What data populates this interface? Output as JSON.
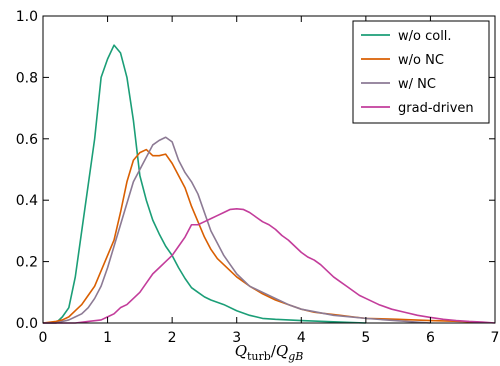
{
  "chart_data": {
    "type": "line",
    "xlabel": "Q_turb / Q_gB",
    "xlabel_parts": {
      "main1": "Q",
      "sub1": "turb",
      "slash": "/",
      "main2": "Q",
      "sub2": "gB"
    },
    "ylabel": "",
    "xlim": [
      0,
      7
    ],
    "ylim": [
      0,
      1.0
    ],
    "xticks": [
      0,
      1,
      2,
      3,
      4,
      5,
      6,
      7
    ],
    "yticks": [
      0.0,
      0.2,
      0.4,
      0.6,
      0.8,
      1.0
    ],
    "xtick_labels": [
      "0",
      "1",
      "2",
      "3",
      "4",
      "5",
      "6",
      "7"
    ],
    "ytick_labels": [
      "0.0",
      "0.2",
      "0.4",
      "0.6",
      "0.8",
      "1.0"
    ],
    "grid": false,
    "legend_position": "top-right",
    "series": [
      {
        "name": "w/o coll.",
        "color": "#1b9e77",
        "x": [
          0.0,
          0.2,
          0.3,
          0.4,
          0.5,
          0.6,
          0.7,
          0.8,
          0.9,
          1.0,
          1.1,
          1.2,
          1.3,
          1.4,
          1.5,
          1.6,
          1.7,
          1.8,
          1.9,
          2.0,
          2.1,
          2.2,
          2.3,
          2.4,
          2.5,
          2.6,
          2.8,
          3.0,
          3.2,
          3.4,
          3.6,
          4.0,
          4.5,
          5.0
        ],
        "y": [
          0.0,
          0.0,
          0.02,
          0.05,
          0.15,
          0.3,
          0.45,
          0.6,
          0.8,
          0.86,
          0.905,
          0.88,
          0.8,
          0.66,
          0.48,
          0.4,
          0.335,
          0.29,
          0.25,
          0.22,
          0.18,
          0.145,
          0.115,
          0.1,
          0.085,
          0.075,
          0.06,
          0.04,
          0.025,
          0.015,
          0.012,
          0.008,
          0.004,
          0.0
        ]
      },
      {
        "name": "w/o NC",
        "color": "#d95f02",
        "x": [
          0.0,
          0.2,
          0.3,
          0.4,
          0.5,
          0.6,
          0.7,
          0.8,
          0.9,
          1.0,
          1.1,
          1.2,
          1.3,
          1.4,
          1.5,
          1.6,
          1.7,
          1.8,
          1.9,
          2.0,
          2.1,
          2.2,
          2.3,
          2.4,
          2.5,
          2.6,
          2.7,
          2.8,
          2.9,
          3.0,
          3.2,
          3.4,
          3.6,
          3.8,
          4.0,
          4.2,
          4.4,
          4.6,
          4.8,
          5.0,
          5.5,
          6.0,
          6.5,
          6.8
        ],
        "y": [
          0.0,
          0.005,
          0.01,
          0.02,
          0.04,
          0.06,
          0.09,
          0.12,
          0.17,
          0.22,
          0.27,
          0.36,
          0.46,
          0.53,
          0.555,
          0.565,
          0.545,
          0.545,
          0.55,
          0.52,
          0.48,
          0.44,
          0.38,
          0.33,
          0.28,
          0.24,
          0.21,
          0.19,
          0.17,
          0.15,
          0.12,
          0.095,
          0.075,
          0.06,
          0.045,
          0.035,
          0.03,
          0.025,
          0.02,
          0.015,
          0.012,
          0.008,
          0.005,
          0.002
        ]
      },
      {
        "name": "w/ NC",
        "color": "#8c7a94",
        "x": [
          0.0,
          0.2,
          0.4,
          0.5,
          0.6,
          0.7,
          0.8,
          0.9,
          1.0,
          1.1,
          1.2,
          1.3,
          1.4,
          1.5,
          1.6,
          1.7,
          1.8,
          1.9,
          2.0,
          2.1,
          2.2,
          2.3,
          2.4,
          2.5,
          2.6,
          2.7,
          2.8,
          2.9,
          3.0,
          3.2,
          3.4,
          3.6,
          3.8,
          4.0,
          4.5,
          5.0,
          5.5,
          6.0
        ],
        "y": [
          0.0,
          0.0,
          0.01,
          0.02,
          0.03,
          0.05,
          0.08,
          0.12,
          0.18,
          0.25,
          0.32,
          0.39,
          0.46,
          0.5,
          0.54,
          0.58,
          0.595,
          0.605,
          0.59,
          0.53,
          0.49,
          0.46,
          0.42,
          0.36,
          0.3,
          0.26,
          0.22,
          0.19,
          0.16,
          0.12,
          0.1,
          0.08,
          0.06,
          0.045,
          0.025,
          0.015,
          0.007,
          0.0
        ]
      },
      {
        "name": "grad-driven",
        "color": "#c33d9b",
        "x": [
          0.0,
          0.5,
          0.7,
          0.9,
          1.0,
          1.1,
          1.2,
          1.3,
          1.4,
          1.5,
          1.6,
          1.7,
          1.8,
          1.9,
          2.0,
          2.1,
          2.2,
          2.3,
          2.4,
          2.5,
          2.6,
          2.7,
          2.8,
          2.9,
          3.0,
          3.1,
          3.2,
          3.3,
          3.4,
          3.5,
          3.6,
          3.7,
          3.8,
          3.9,
          4.0,
          4.1,
          4.2,
          4.3,
          4.4,
          4.5,
          4.6,
          4.7,
          4.8,
          4.9,
          5.0,
          5.2,
          5.4,
          5.6,
          5.8,
          6.0,
          6.2,
          6.4,
          6.6,
          6.8,
          7.0
        ],
        "y": [
          0.0,
          0.0,
          0.005,
          0.01,
          0.02,
          0.03,
          0.05,
          0.06,
          0.08,
          0.1,
          0.13,
          0.16,
          0.18,
          0.2,
          0.22,
          0.25,
          0.28,
          0.32,
          0.32,
          0.33,
          0.34,
          0.35,
          0.36,
          0.37,
          0.372,
          0.37,
          0.36,
          0.345,
          0.33,
          0.32,
          0.305,
          0.285,
          0.27,
          0.25,
          0.23,
          0.215,
          0.205,
          0.19,
          0.17,
          0.15,
          0.135,
          0.12,
          0.105,
          0.09,
          0.08,
          0.06,
          0.045,
          0.035,
          0.025,
          0.018,
          0.012,
          0.008,
          0.005,
          0.003,
          0.0
        ]
      }
    ]
  }
}
